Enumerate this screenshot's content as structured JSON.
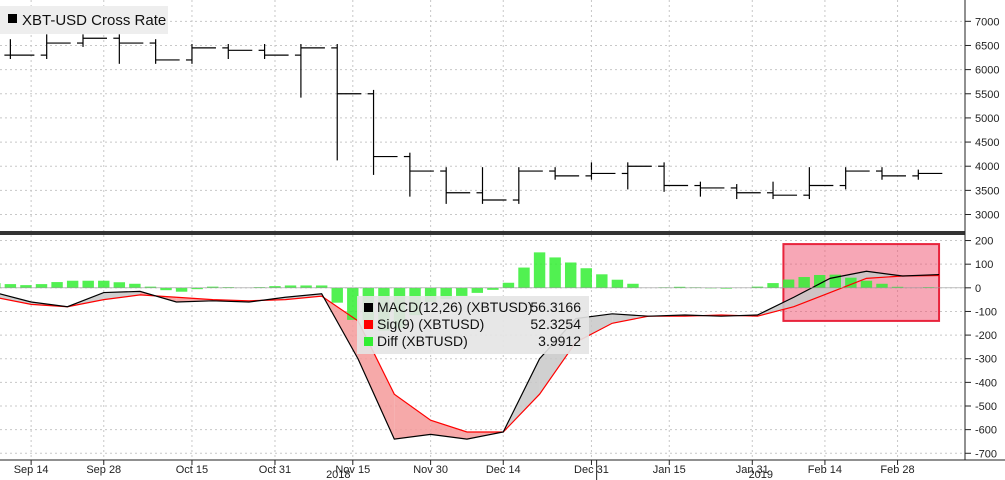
{
  "chart_data": [
    {
      "type": "line",
      "panel": "price",
      "title": "XBT-USD Cross Rate",
      "legend_placement": "top-left",
      "ylim": [
        2700,
        7400
      ],
      "yticks": [
        3000,
        3500,
        4000,
        4500,
        5000,
        5500,
        6000,
        6500,
        7000
      ],
      "grid": true,
      "series": [
        {
          "name": "XBT-USD Cross Rate",
          "color": "#000000",
          "style": "weekly-bars",
          "x": [
            "2018-09-10",
            "2018-09-17",
            "2018-09-24",
            "2018-10-01",
            "2018-10-08",
            "2018-10-15",
            "2018-10-22",
            "2018-10-29",
            "2018-11-05",
            "2018-11-12",
            "2018-11-19",
            "2018-11-26",
            "2018-12-03",
            "2018-12-10",
            "2018-12-17",
            "2018-12-24",
            "2018-12-31",
            "2019-01-07",
            "2019-01-14",
            "2019-01-21",
            "2019-01-28",
            "2019-02-04",
            "2019-02-11",
            "2019-02-18",
            "2019-02-25",
            "2019-03-04"
          ],
          "values": [
            6300,
            6550,
            6650,
            6550,
            6200,
            6450,
            6400,
            6300,
            6450,
            5500,
            4200,
            3900,
            3450,
            3300,
            3900,
            3800,
            3850,
            4000,
            3600,
            3550,
            3450,
            3400,
            3600,
            3900,
            3800,
            3850
          ]
        }
      ]
    },
    {
      "type": "line",
      "panel": "macd",
      "legend_placement": "center",
      "ylim": [
        -720,
        215
      ],
      "yticks": [
        -700,
        -600,
        -500,
        -400,
        -300,
        -200,
        -100,
        0,
        100,
        200
      ],
      "grid": true,
      "categories": [
        "Sep 14",
        "Sep 28",
        "Oct 15",
        "Oct 31",
        "Nov 15",
        "Nov 30",
        "Dec 14",
        "Dec 31",
        "Jan 15",
        "Jan 31",
        "Feb 14",
        "Feb 28"
      ],
      "year_labels": [
        "2018",
        "2019"
      ],
      "x": [
        "2018-09-07",
        "2018-09-14",
        "2018-09-21",
        "2018-09-28",
        "2018-10-05",
        "2018-10-12",
        "2018-10-19",
        "2018-10-26",
        "2018-11-02",
        "2018-11-09",
        "2018-11-16",
        "2018-11-23",
        "2018-11-30",
        "2018-12-07",
        "2018-12-14",
        "2018-12-21",
        "2018-12-28",
        "2019-01-04",
        "2019-01-11",
        "2019-01-18",
        "2019-01-25",
        "2019-02-01",
        "2019-02-08",
        "2019-02-15",
        "2019-02-22",
        "2019-03-01",
        "2019-03-08"
      ],
      "series": [
        {
          "name": "MACD(12,26) (XBTUSD)",
          "color": "#000000",
          "last_value": "56.3166",
          "values": [
            -20,
            -60,
            -80,
            -20,
            -15,
            -60,
            -55,
            -60,
            -40,
            -25,
            -300,
            -640,
            -620,
            -640,
            -610,
            -300,
            -130,
            -110,
            -120,
            -115,
            -120,
            -115,
            -40,
            40,
            70,
            50,
            56
          ]
        },
        {
          "name": "Sig(9) (XBTUSD)",
          "color": "#ff0000",
          "last_value": "52.3254",
          "values": [
            -40,
            -70,
            -80,
            -50,
            -30,
            -40,
            -50,
            -55,
            -50,
            -35,
            -140,
            -450,
            -560,
            -610,
            -610,
            -450,
            -230,
            -150,
            -120,
            -120,
            -115,
            -120,
            -80,
            -20,
            40,
            50,
            52
          ]
        },
        {
          "name": "Diff (XBTUSD)",
          "color": "#33ee33",
          "style": "histogram",
          "last_value": "3.9912",
          "values": [
            20,
            10,
            30,
            30,
            15,
            -20,
            5,
            0,
            10,
            10,
            -160,
            -190,
            -60,
            -30,
            0,
            150,
            100,
            40,
            0,
            5,
            -5,
            5,
            40,
            60,
            30,
            0,
            4
          ]
        }
      ],
      "highlight": {
        "x_range": [
          "2019-02-06",
          "2019-03-08"
        ],
        "y_range": [
          -140,
          185
        ],
        "color": "#f0506e"
      }
    }
  ]
}
